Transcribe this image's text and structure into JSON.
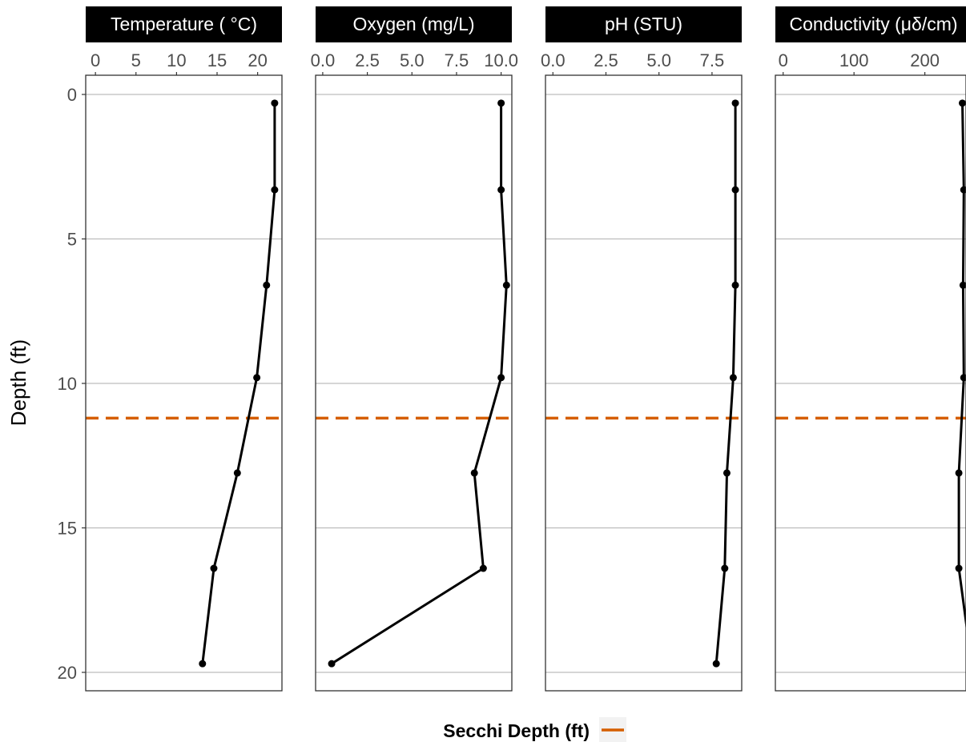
{
  "chart_data": {
    "type": "line",
    "ylabel": "Depth (ft)",
    "y_reversed": true,
    "ylim": [
      0,
      20.6
    ],
    "yticks": [
      0,
      5,
      10,
      15,
      20
    ],
    "grid": "horizontal major lines",
    "x_axis_position": "top",
    "legend": {
      "position": "bottom",
      "title": "Secchi Depth (ft)",
      "color": "#D55E00",
      "style": "dashed"
    },
    "secchi_depth": 11.2,
    "depths": [
      0.3,
      3.3,
      6.6,
      9.8,
      13.1,
      16.4,
      19.7
    ],
    "panels": [
      {
        "title": "Temperature ( °C)",
        "xlim": [
          -1.2,
          23.0
        ],
        "xticks": [
          0,
          5,
          10,
          15,
          20
        ],
        "xtick_labels": [
          "0",
          "5",
          "10",
          "15",
          "20"
        ],
        "values": [
          22.1,
          22.1,
          21.1,
          19.9,
          17.5,
          14.6,
          13.2
        ]
      },
      {
        "title": "Oxygen (mg/L)",
        "xlim": [
          -0.4,
          10.6
        ],
        "xticks": [
          0.0,
          2.5,
          5.0,
          7.5,
          10.0
        ],
        "xtick_labels": [
          "0.0",
          "2.5",
          "5.0",
          "7.5",
          "10.0"
        ],
        "values": [
          10.0,
          10.0,
          10.3,
          10.0,
          8.5,
          9.0,
          0.5
        ]
      },
      {
        "title": "pH (STU)",
        "xlim": [
          -0.35,
          8.9
        ],
        "xticks": [
          0.0,
          2.5,
          5.0,
          7.5
        ],
        "xtick_labels": [
          "0.0",
          "2.5",
          "5.0",
          "7.5"
        ],
        "values": [
          8.6,
          8.6,
          8.6,
          8.5,
          8.2,
          8.1,
          7.7
        ]
      },
      {
        "title": "Conductivity (μδ/cm)",
        "xlim": [
          -11,
          266
        ],
        "xticks": [
          0,
          100,
          200
        ],
        "xtick_labels": [
          "0",
          "100",
          "200"
        ],
        "values": [
          253,
          255,
          254,
          255,
          248,
          248,
          266
        ]
      }
    ]
  }
}
